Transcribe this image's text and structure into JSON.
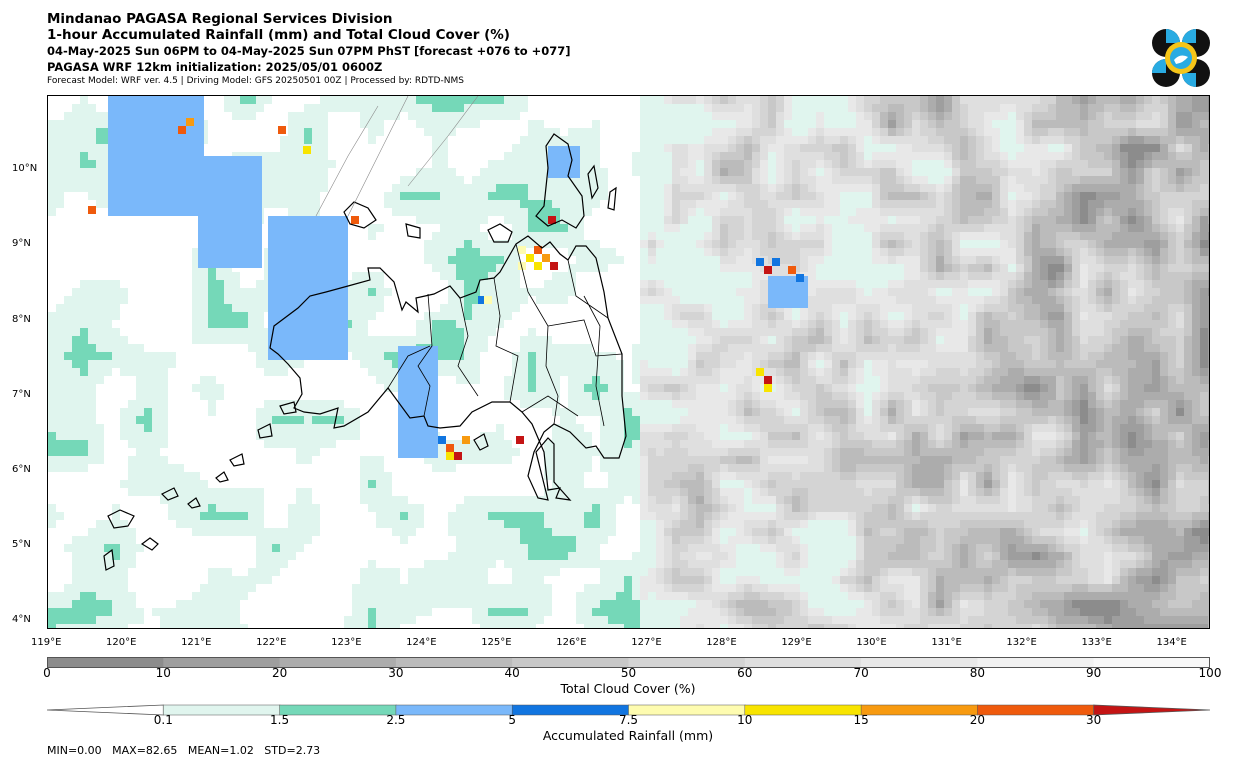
{
  "header": {
    "title1": "Mindanao PAGASA Regional Services Division",
    "title2": "1-hour Accumulated Rainfall (mm) and Total Cloud Cover (%)",
    "title3": "04-May-2025 Sun 06PM to 04-May-2025 Sun 07PM PhST [forecast +076 to +077]",
    "title4": "PAGASA WRF 12km initialization: 2025/05/01 0600Z",
    "title5": "Forecast Model: WRF ver. 4.5 | Driving Model: GFS 20250501 00Z | Processed by: RDTD-NMS"
  },
  "logo": {
    "icon": "pagasa-logo-icon",
    "colors": [
      "#111111",
      "#29abe2",
      "#f5c518"
    ]
  },
  "map": {
    "lat_labels": [
      "10°N",
      "9°N",
      "8°N",
      "7°N",
      "6°N",
      "5°N",
      "4°N"
    ],
    "lon_labels": [
      "119°E",
      "120°E",
      "121°E",
      "122°E",
      "123°E",
      "124°E",
      "125°E",
      "126°E",
      "127°E",
      "128°E",
      "129°E",
      "130°E",
      "131°E",
      "132°E",
      "133°E",
      "134°E"
    ],
    "lat_range": [
      3.9,
      11.0
    ],
    "lon_range": [
      119.0,
      134.5
    ]
  },
  "cloud_colorbar": {
    "title": "Total Cloud Cover (%)",
    "tick_labels": [
      "0",
      "10",
      "20",
      "30",
      "40",
      "50",
      "60",
      "70",
      "80",
      "90",
      "100"
    ],
    "colors": [
      "#8c8c8c",
      "#9e9e9e",
      "#acacac",
      "#bbbbbb",
      "#c8c8c8",
      "#d4d4d4",
      "#dfdfdf",
      "#e8e8e8",
      "#f1f1f1",
      "#f8f8f8"
    ]
  },
  "rain_colorbar": {
    "title": "Accumulated Rainfall (mm)",
    "tick_labels": [
      "0.1",
      "1.5",
      "2.5",
      "5",
      "7.5",
      "10",
      "15",
      "20",
      "30"
    ],
    "colors": [
      "#e0f5ee",
      "#75d8b8",
      "#7ab8fa",
      "#1175e0",
      "#fefcb0",
      "#f8e400",
      "#f79a10",
      "#ef5a0c",
      "#c41414"
    ],
    "extend": "both"
  },
  "stats": {
    "text": "MIN=0.00   MAX=82.65   MEAN=1.02   STD=2.73"
  }
}
